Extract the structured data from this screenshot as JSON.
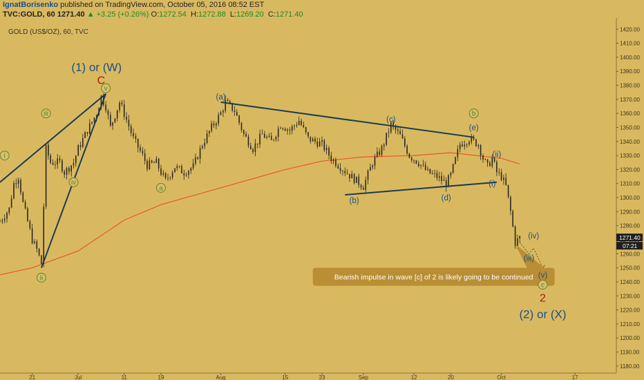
{
  "header": {
    "author": "IgnatBorisenko",
    "published_text": "published on TradingView.com, October 05, 2016 08:52 EST",
    "symbol": "TVC:GOLD, 60",
    "last": "1271.40",
    "change": "▲ +3.25 (+0.26%)",
    "o_label": "O:",
    "o_value": "1272.54",
    "h_label": "H:",
    "h_value": "1272.88",
    "l_label": "L:",
    "l_value": "1269.20",
    "c_label": "C:",
    "c_value": "1271.40"
  },
  "colors": {
    "background": "#d9b960",
    "candle": "#2a2620",
    "ma": "#e8572a",
    "trendline": "#1b3a57",
    "wave_blue": "#1c4e86",
    "wave_green": "#6a7f1e",
    "wave_red": "#9e2016",
    "callout_bg": "#b98e34",
    "price_badge": "#1e1e1e"
  },
  "chart_data": {
    "type": "candlestick",
    "title": "GOLD (US$/OZ), 60, TVC",
    "y_range": [
      1175,
      1428
    ],
    "y_ticks": [
      1180,
      1190,
      1200,
      1210,
      1220,
      1230,
      1240,
      1250,
      1260,
      1270,
      1280,
      1290,
      1300,
      1310,
      1320,
      1330,
      1340,
      1350,
      1360,
      1370,
      1380,
      1390,
      1400,
      1410,
      1420
    ],
    "x_range_days": [
      "2016-06-14",
      "2016-10-26"
    ],
    "x_tick_labels": [
      {
        "label": "21",
        "date": "2016-06-21"
      },
      {
        "label": "Jul",
        "date": "2016-07-01"
      },
      {
        "label": "11",
        "date": "2016-07-11"
      },
      {
        "label": "19",
        "date": "2016-07-19"
      },
      {
        "label": "Aug",
        "date": "2016-08-01"
      },
      {
        "label": "15",
        "date": "2016-08-15"
      },
      {
        "label": "23",
        "date": "2016-08-23"
      },
      {
        "label": "Sep",
        "date": "2016-09-01"
      },
      {
        "label": "12",
        "date": "2016-09-12"
      },
      {
        "label": "20",
        "date": "2016-09-20"
      },
      {
        "label": "Oct",
        "date": "2016-10-01"
      },
      {
        "label": "17",
        "date": "2016-10-17"
      }
    ],
    "price_path": [
      [
        "2016-06-14",
        1283
      ],
      [
        "2016-06-16",
        1292
      ],
      [
        "2016-06-17",
        1310
      ],
      [
        "2016-06-18",
        1315
      ],
      [
        "2016-06-19",
        1296
      ],
      [
        "2016-06-21",
        1270
      ],
      [
        "2016-06-22",
        1263
      ],
      [
        "2016-06-23",
        1253
      ],
      [
        "2016-06-24",
        1335
      ],
      [
        "2016-06-25",
        1325
      ],
      [
        "2016-06-27",
        1325
      ],
      [
        "2016-06-28",
        1318
      ],
      [
        "2016-06-30",
        1325
      ],
      [
        "2016-07-01",
        1335
      ],
      [
        "2016-07-03",
        1348
      ],
      [
        "2016-07-05",
        1360
      ],
      [
        "2016-07-06",
        1372
      ],
      [
        "2016-07-07",
        1365
      ],
      [
        "2016-07-08",
        1350
      ],
      [
        "2016-07-10",
        1368
      ],
      [
        "2016-07-11",
        1360
      ],
      [
        "2016-07-13",
        1342
      ],
      [
        "2016-07-15",
        1330
      ],
      [
        "2016-07-16",
        1323
      ],
      [
        "2016-07-18",
        1325
      ],
      [
        "2016-07-19",
        1318
      ],
      [
        "2016-07-20",
        1312
      ],
      [
        "2016-07-22",
        1322
      ],
      [
        "2016-07-24",
        1318
      ],
      [
        "2016-07-26",
        1322
      ],
      [
        "2016-07-28",
        1338
      ],
      [
        "2016-07-30",
        1350
      ],
      [
        "2016-08-01",
        1360
      ],
      [
        "2016-08-02",
        1368
      ],
      [
        "2016-08-04",
        1362
      ],
      [
        "2016-08-06",
        1345
      ],
      [
        "2016-08-08",
        1335
      ],
      [
        "2016-08-10",
        1345
      ],
      [
        "2016-08-12",
        1340
      ],
      [
        "2016-08-14",
        1352
      ],
      [
        "2016-08-16",
        1348
      ],
      [
        "2016-08-18",
        1355
      ],
      [
        "2016-08-20",
        1342
      ],
      [
        "2016-08-23",
        1338
      ],
      [
        "2016-08-25",
        1328
      ],
      [
        "2016-08-27",
        1322
      ],
      [
        "2016-08-29",
        1316
      ],
      [
        "2016-09-01",
        1308
      ],
      [
        "2016-09-03",
        1325
      ],
      [
        "2016-09-05",
        1335
      ],
      [
        "2016-09-07",
        1352
      ],
      [
        "2016-09-09",
        1344
      ],
      [
        "2016-09-11",
        1330
      ],
      [
        "2016-09-13",
        1325
      ],
      [
        "2016-09-15",
        1318
      ],
      [
        "2016-09-17",
        1315
      ],
      [
        "2016-09-19",
        1310
      ],
      [
        "2016-09-20",
        1316
      ],
      [
        "2016-09-22",
        1338
      ],
      [
        "2016-09-24",
        1342
      ],
      [
        "2016-09-26",
        1338
      ],
      [
        "2016-09-27",
        1328
      ],
      [
        "2016-09-28",
        1322
      ],
      [
        "2016-09-29",
        1328
      ],
      [
        "2016-09-30",
        1318
      ],
      [
        "2016-10-01",
        1315
      ],
      [
        "2016-10-02",
        1308
      ],
      [
        "2016-10-03",
        1290
      ],
      [
        "2016-10-04",
        1268
      ],
      [
        "2016-10-05",
        1271.4
      ]
    ],
    "moving_average": [
      [
        "2016-06-14",
        1245
      ],
      [
        "2016-06-21",
        1250
      ],
      [
        "2016-07-01",
        1262
      ],
      [
        "2016-07-11",
        1284
      ],
      [
        "2016-07-19",
        1295
      ],
      [
        "2016-08-01",
        1307
      ],
      [
        "2016-08-15",
        1320
      ],
      [
        "2016-08-23",
        1326
      ],
      [
        "2016-09-01",
        1329
      ],
      [
        "2016-09-12",
        1330
      ],
      [
        "2016-09-20",
        1332
      ],
      [
        "2016-10-01",
        1328
      ],
      [
        "2016-10-05",
        1324
      ]
    ],
    "trendlines": [
      {
        "from": [
          "2016-06-14",
          1311
        ],
        "to": [
          "2016-07-07",
          1374
        ]
      },
      {
        "from": [
          "2016-06-23",
          1250
        ],
        "to": [
          "2016-07-07",
          1374
        ]
      },
      {
        "from": [
          "2016-08-01",
          1368
        ],
        "to": [
          "2016-09-25",
          1343
        ]
      },
      {
        "from": [
          "2016-08-28",
          1302
        ],
        "to": [
          "2016-09-30",
          1311
        ]
      }
    ],
    "projection": [
      [
        "2016-10-05",
        1268
      ],
      [
        "2016-10-07",
        1260
      ],
      [
        "2016-10-08",
        1264
      ],
      [
        "2016-10-10",
        1250
      ]
    ],
    "wave_labels": [
      {
        "text": "(1) or (W)",
        "date": "2016-07-05",
        "price": 1393,
        "style": "big-blue"
      },
      {
        "text": "C",
        "date": "2016-07-06",
        "price": 1384,
        "style": "red"
      },
      {
        "text": "v",
        "date": "2016-07-07",
        "price": 1378,
        "style": "green-circle"
      },
      {
        "text": "iii",
        "date": "2016-06-24",
        "price": 1360,
        "style": "green-circle"
      },
      {
        "text": "i",
        "date": "2016-06-15",
        "price": 1330,
        "style": "green-circle"
      },
      {
        "text": "iv",
        "date": "2016-06-30",
        "price": 1311,
        "style": "green-circle"
      },
      {
        "text": "ii",
        "date": "2016-06-23",
        "price": 1243,
        "style": "green-circle"
      },
      {
        "text": "a",
        "date": "2016-07-19",
        "price": 1307,
        "style": "green-circle"
      },
      {
        "text": "(a)",
        "date": "2016-08-01",
        "price": 1372,
        "style": "blue"
      },
      {
        "text": "(b)",
        "date": "2016-08-30",
        "price": 1298,
        "style": "blue"
      },
      {
        "text": "(c)",
        "date": "2016-09-07",
        "price": 1356,
        "style": "blue"
      },
      {
        "text": "(d)",
        "date": "2016-09-19",
        "price": 1300,
        "style": "blue"
      },
      {
        "text": "b",
        "date": "2016-09-25",
        "price": 1360,
        "style": "green-circle"
      },
      {
        "text": "(e)",
        "date": "2016-09-25",
        "price": 1350,
        "style": "blue"
      },
      {
        "text": "(ii)",
        "date": "2016-09-30",
        "price": 1331,
        "style": "blue"
      },
      {
        "text": "(i)",
        "date": "2016-09-29",
        "price": 1310,
        "style": "blue"
      },
      {
        "text": "(iv)",
        "date": "2016-10-08",
        "price": 1273,
        "style": "blue"
      },
      {
        "text": "(iii)",
        "date": "2016-10-07",
        "price": 1257,
        "style": "blue"
      },
      {
        "text": "(v)",
        "date": "2016-10-10",
        "price": 1245,
        "style": "blue"
      },
      {
        "text": "c",
        "date": "2016-10-10",
        "price": 1238,
        "style": "green-circle"
      },
      {
        "text": "2",
        "date": "2016-10-10",
        "price": 1229,
        "style": "red"
      },
      {
        "text": "(2) or (X)",
        "date": "2016-10-10",
        "price": 1217,
        "style": "big-blue"
      }
    ],
    "annotation": {
      "text": "Bearish impulse in wave [c] of 2 is likely going to be continued",
      "anchor": [
        "2016-10-04",
        1267
      ],
      "box_left_top": [
        "2016-08-21",
        1250
      ]
    },
    "last_price": {
      "value": "1271.40",
      "timer": "07:21",
      "price": 1271.4
    }
  }
}
